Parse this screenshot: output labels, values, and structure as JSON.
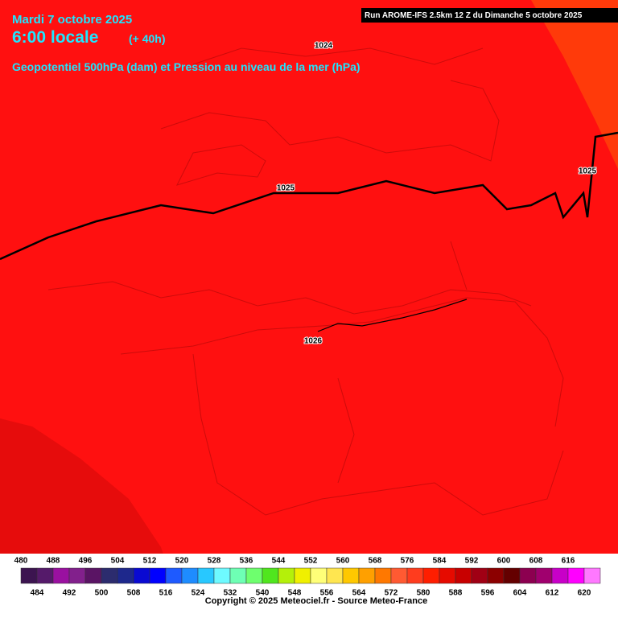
{
  "header": {
    "date": "Mardi 7 octobre 2025",
    "time": "6:00 locale",
    "lead": "(+ 40h)",
    "parameter": "Geopotentiel 500hPa (dam) et Pression au niveau de la mer (hPa)",
    "run": "Run AROME-IFS 2.5km 12 Z du Dimanche 5 octobre 2025"
  },
  "isobars": [
    {
      "label": "1024"
    },
    {
      "label": "1025"
    },
    {
      "label": "1025"
    },
    {
      "label": "1026"
    }
  ],
  "legend": {
    "items": [
      {
        "value": 480,
        "color": "#3c1450"
      },
      {
        "value": 484,
        "color": "#551a6a"
      },
      {
        "value": 488,
        "color": "#9a10a0"
      },
      {
        "value": 492,
        "color": "#82208c"
      },
      {
        "value": 496,
        "color": "#5a1464"
      },
      {
        "value": 500,
        "color": "#2c2c6e"
      },
      {
        "value": 504,
        "color": "#1e288c"
      },
      {
        "value": 508,
        "color": "#0a0ad2"
      },
      {
        "value": 512,
        "color": "#0000ff"
      },
      {
        "value": 516,
        "color": "#1e5aff"
      },
      {
        "value": 520,
        "color": "#1e8cff"
      },
      {
        "value": 524,
        "color": "#28c8ff"
      },
      {
        "value": 528,
        "color": "#6efaff"
      },
      {
        "value": 532,
        "color": "#6effb4"
      },
      {
        "value": 536,
        "color": "#6eff6e"
      },
      {
        "value": 540,
        "color": "#50e61e"
      },
      {
        "value": 544,
        "color": "#b4f00a"
      },
      {
        "value": 548,
        "color": "#f0f000"
      },
      {
        "value": 552,
        "color": "#ffff78"
      },
      {
        "value": 556,
        "color": "#ffe650"
      },
      {
        "value": 560,
        "color": "#ffc800"
      },
      {
        "value": 564,
        "color": "#ffa000"
      },
      {
        "value": 568,
        "color": "#ff7800"
      },
      {
        "value": 572,
        "color": "#ff5a32"
      },
      {
        "value": 576,
        "color": "#ff3c1e"
      },
      {
        "value": 580,
        "color": "#ff1e00"
      },
      {
        "value": 584,
        "color": "#e60a00"
      },
      {
        "value": 588,
        "color": "#c80000"
      },
      {
        "value": 592,
        "color": "#a00014"
      },
      {
        "value": 596,
        "color": "#8c0000"
      },
      {
        "value": 600,
        "color": "#640000"
      },
      {
        "value": 604,
        "color": "#8c0050"
      },
      {
        "value": 608,
        "color": "#a0006e"
      },
      {
        "value": 612,
        "color": "#c800c8"
      },
      {
        "value": 616,
        "color": "#ff00ff"
      },
      {
        "value": 620,
        "color": "#ff78ff"
      }
    ]
  },
  "footer": "Copyright © 2025 Meteociel.fr - Source Meteo-France"
}
